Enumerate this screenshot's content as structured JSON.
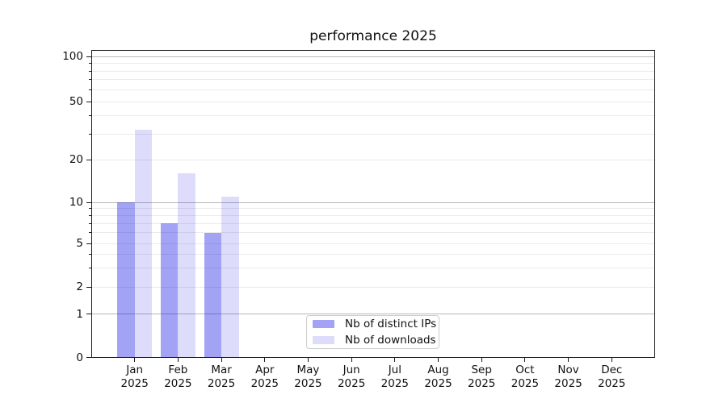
{
  "chart_data": {
    "type": "bar",
    "title": "performance 2025",
    "categories": [
      "Jan",
      "Feb",
      "Mar",
      "Apr",
      "May",
      "Jun",
      "Jul",
      "Aug",
      "Sep",
      "Oct",
      "Nov",
      "Dec"
    ],
    "category_year": "2025",
    "series": [
      {
        "name": "Nb of distinct IPs",
        "color": "rgba(25,25,230,0.40)",
        "values": [
          10,
          7,
          6,
          0,
          0,
          0,
          0,
          0,
          0,
          0,
          0,
          0
        ]
      },
      {
        "name": "Nb of downloads",
        "color": "rgba(25,25,230,0.15)",
        "values": [
          32,
          16,
          11,
          0,
          0,
          0,
          0,
          0,
          0,
          0,
          0,
          0
        ]
      }
    ],
    "y_ticks": [
      0,
      1,
      2,
      5,
      10,
      20,
      50,
      100
    ],
    "y_scale": "symlog",
    "ylim": [
      0,
      110
    ],
    "grid": true,
    "legend_position": "lower center",
    "axis_color": "#1a1a1a",
    "major_grid_color": "#b8b8b8",
    "minor_grid_color": "#eaeaea"
  }
}
